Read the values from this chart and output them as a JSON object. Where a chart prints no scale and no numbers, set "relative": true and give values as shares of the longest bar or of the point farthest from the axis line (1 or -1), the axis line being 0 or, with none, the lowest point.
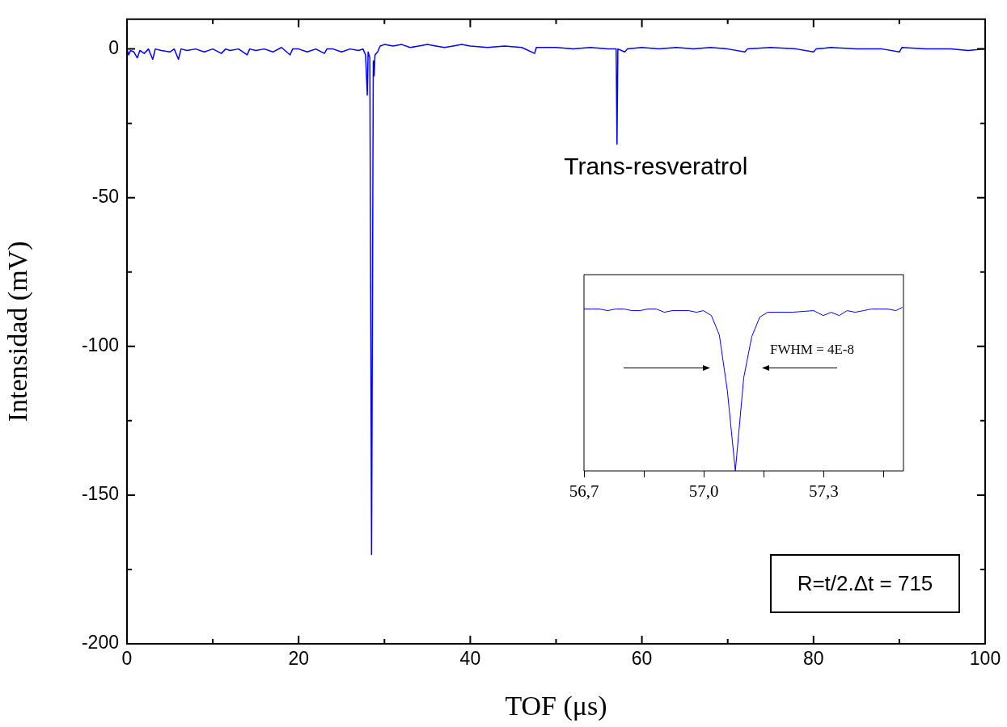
{
  "chart_data": [
    {
      "type": "line",
      "xlabel": "TOF (μs)",
      "ylabel": "Intensidad (mV)",
      "color": "#0000ff",
      "marker": "none",
      "grid": false,
      "legend": false,
      "xlim": [
        0,
        100
      ],
      "xticks": [
        0,
        {
          "value": 10,
          "label": null
        },
        20,
        {
          "value": 30,
          "label": null
        },
        40,
        {
          "value": 50,
          "label": null
        },
        60,
        {
          "value": 70,
          "label": null
        },
        80,
        {
          "value": 90,
          "label": null
        },
        100
      ],
      "ylim": [
        -200,
        10
      ],
      "yticks": [
        -200,
        {
          "value": -175,
          "label": null
        },
        -150,
        {
          "value": -125,
          "label": null
        },
        -100,
        {
          "value": -75,
          "label": null
        },
        -50,
        {
          "value": -25,
          "label": null
        },
        0
      ],
      "x": [
        0,
        0.2,
        0.4,
        0.8,
        1.2,
        1.5,
        2,
        2.5,
        3,
        3.3,
        4,
        5,
        5.5,
        6,
        6.3,
        7,
        8,
        9,
        10,
        11,
        11.5,
        12,
        13,
        14,
        14.3,
        15,
        16,
        17,
        18,
        19,
        19.3,
        20,
        21,
        22,
        23,
        23.3,
        24,
        25,
        26,
        27,
        27.5,
        27.8,
        28,
        28.1,
        28.3,
        28.5,
        28.7,
        28.8,
        28.9,
        29.2,
        29.5,
        30,
        31,
        32,
        33,
        34,
        35,
        36,
        37,
        38,
        39,
        40,
        42,
        44,
        46,
        47.5,
        47.7,
        50,
        52,
        54,
        56,
        57,
        57.1,
        57.2,
        58,
        58.3,
        60,
        62,
        64,
        66,
        68,
        70,
        72,
        72.3,
        75,
        78,
        80,
        80.3,
        82,
        85,
        88,
        90,
        90.3,
        93,
        96,
        98,
        100
      ],
      "values": [
        0,
        -2,
        -0.5,
        -1,
        -3,
        -0.5,
        -1.5,
        0,
        -3.5,
        0,
        -0.5,
        -1,
        0,
        -3.5,
        0,
        -0.5,
        0,
        -1,
        0,
        -1.5,
        0,
        -0.5,
        0,
        -2,
        0,
        -0.5,
        0,
        -1,
        0.5,
        -2,
        0,
        0,
        -1,
        0,
        -1.5,
        0,
        0,
        -1,
        0,
        -0.5,
        0,
        -2,
        -15.5,
        -1,
        -3,
        -170,
        -4,
        -9,
        -2,
        -1,
        1,
        1.5,
        1,
        1.5,
        0.5,
        1,
        1.5,
        1,
        0.5,
        1,
        1.5,
        1,
        0.5,
        1,
        0.5,
        -1.5,
        0.5,
        0.5,
        0,
        0.5,
        0,
        0,
        -32,
        0,
        -1,
        0,
        0.5,
        0,
        0.5,
        0,
        0.5,
        0,
        -1,
        0,
        0.5,
        0,
        -1,
        0,
        0.5,
        0,
        0,
        -1,
        0.5,
        0,
        0,
        -0.5,
        0
      ],
      "annotations": [
        {
          "text": "Trans-resveratrol",
          "x": 57.1,
          "y": -32
        },
        "R=t/2.Δt = 715"
      ]
    },
    {
      "type": "line",
      "relative": true,
      "color": "#0000ff",
      "marker": "none",
      "grid": false,
      "legend": false,
      "tick_labels": "x",
      "xlim": [
        56.7,
        57.5
      ],
      "xticks": [
        {
          "value": 56.7,
          "label": "56,7"
        },
        {
          "value": 56.85,
          "label": null
        },
        {
          "value": 57.0,
          "label": "57,0"
        },
        {
          "value": 57.15,
          "label": null
        },
        {
          "value": 57.3,
          "label": "57,3"
        },
        {
          "value": 57.45,
          "label": null
        }
      ],
      "x": [
        56.7,
        56.719,
        56.739,
        56.759,
        56.78,
        56.8,
        56.82,
        56.84,
        56.86,
        56.881,
        56.901,
        56.921,
        56.941,
        56.962,
        56.982,
        56.999,
        57.019,
        57.039,
        57.059,
        57.079,
        57.1,
        57.12,
        57.14,
        57.16,
        57.221,
        57.275,
        57.299,
        57.319,
        57.339,
        57.359,
        57.379,
        57.4,
        57.42,
        57.44,
        57.46,
        57.481,
        57.497
      ],
      "values": [
        0.99,
        0.99,
        0.99,
        0.98,
        0.99,
        0.99,
        0.98,
        0.98,
        0.99,
        0.99,
        0.97,
        0.98,
        0.98,
        0.98,
        0.97,
        0.98,
        0.95,
        0.83,
        0.49,
        0,
        0.57,
        0.82,
        0.94,
        0.97,
        0.97,
        0.98,
        0.95,
        0.97,
        0.95,
        0.98,
        0.97,
        0.98,
        0.99,
        0.99,
        0.99,
        0.98,
        1
      ],
      "annotations": [
        "FWHM = 4E-8"
      ]
    }
  ]
}
